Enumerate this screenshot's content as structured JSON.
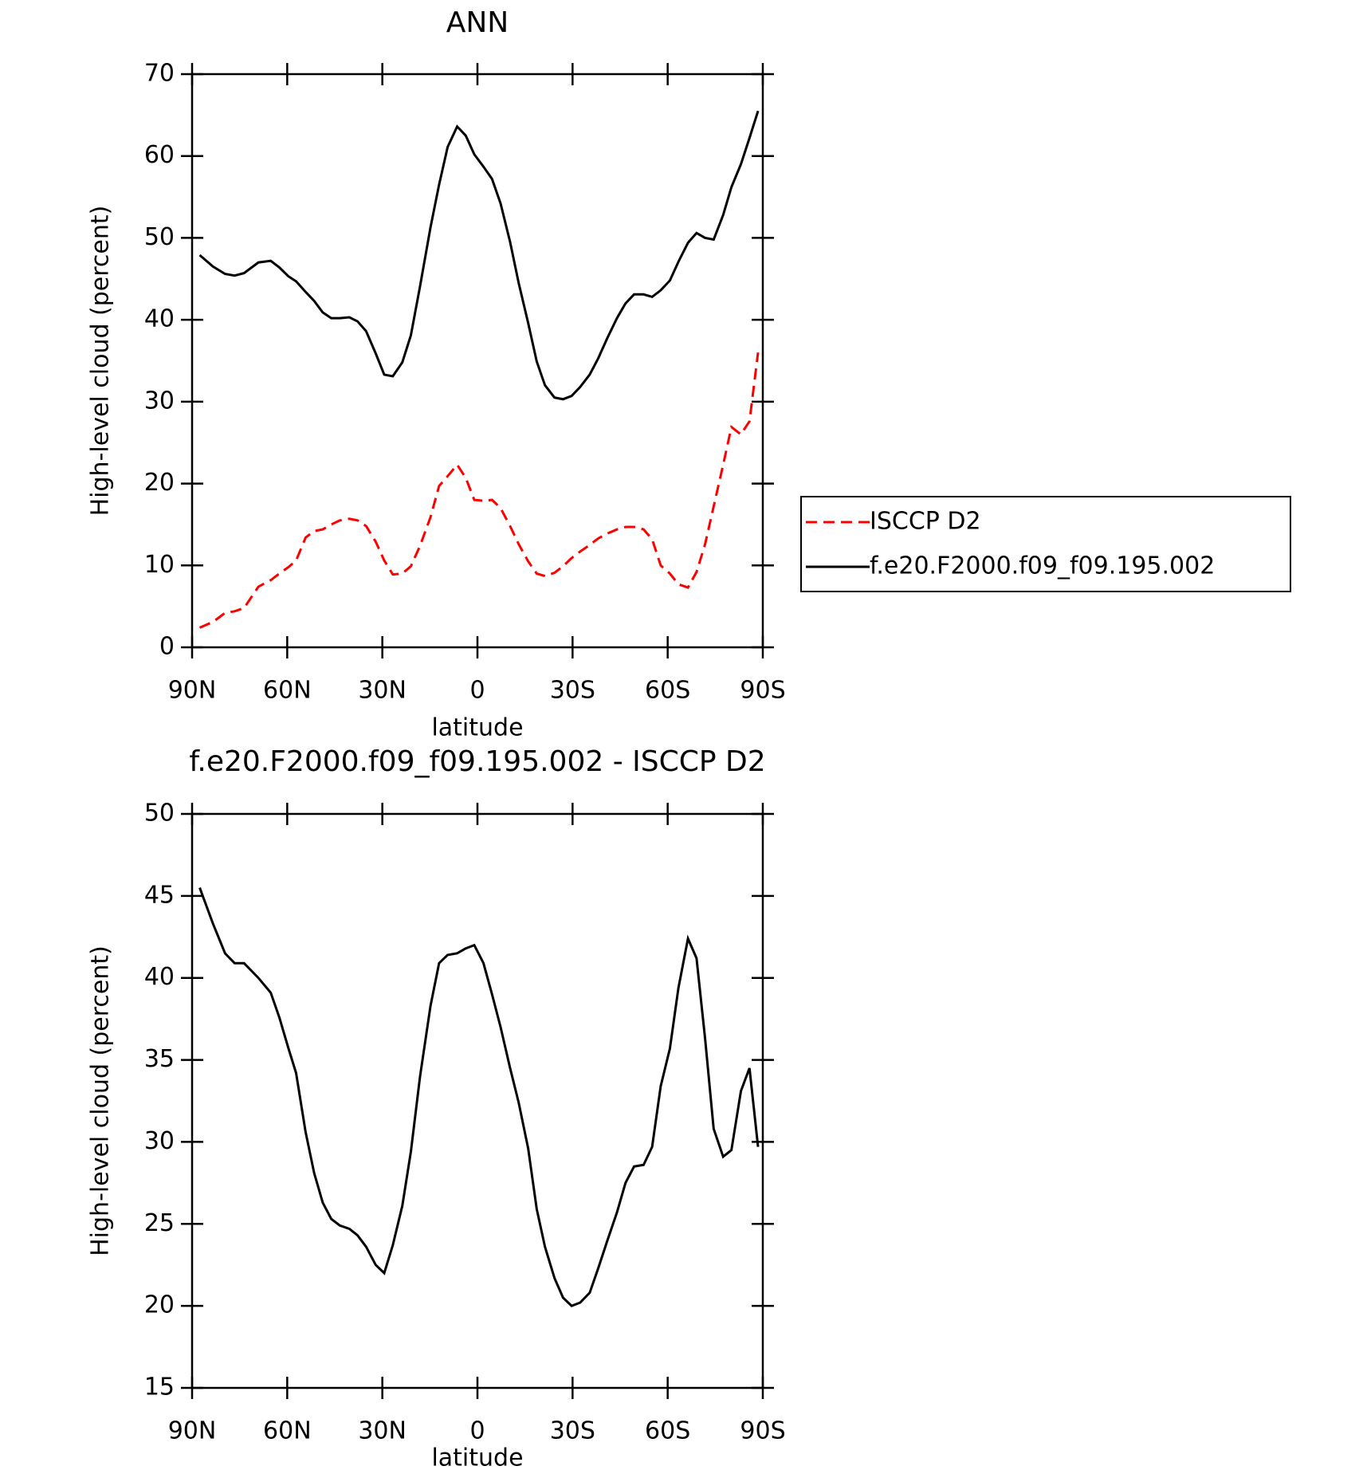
{
  "chart_data": [
    {
      "type": "line",
      "title": "ANN",
      "x_label": "latitude",
      "y_label": "High-level cloud (percent)",
      "x": [
        87.6,
        83.4,
        79.6,
        76.6,
        73.6,
        69.1,
        65.2,
        62.5,
        59.6,
        57.2,
        54.2,
        51.5,
        48.8,
        46.1,
        43.4,
        40.4,
        37.8,
        35.1,
        32.1,
        29.4,
        26.7,
        23.7,
        21.0,
        18.1,
        14.8,
        12.1,
        9.4,
        6.4,
        3.7,
        1.0,
        -1.9,
        -4.6,
        -7.3,
        -10.3,
        -13.0,
        -16.0,
        -18.7,
        -21.3,
        -24.3,
        -27.0,
        -29.7,
        -32.4,
        -35.4,
        -38.1,
        -41.0,
        -44.0,
        -46.7,
        -49.4,
        -52.4,
        -55.1,
        -57.8,
        -60.7,
        -63.4,
        -66.4,
        -69.1,
        -71.8,
        -74.5,
        -77.5,
        -80.1,
        -83.1,
        -85.8,
        -88.5
      ],
      "series": [
        {
          "name": "ISCCP D2",
          "color": "#ff0000",
          "line_style": "dashed",
          "values": [
            2.4,
            3.1,
            4.2,
            4.4,
            4.8,
            7.4,
            8.2,
            9.0,
            9.8,
            10.6,
            13.4,
            14.2,
            14.4,
            15.0,
            15.5,
            15.7,
            15.5,
            14.8,
            12.9,
            10.6,
            8.9,
            9.0,
            9.9,
            12.4,
            15.9,
            19.7,
            20.9,
            22.3,
            20.7,
            18.0,
            17.9,
            18.0,
            17.0,
            14.8,
            12.6,
            10.5,
            9.0,
            8.7,
            9.1,
            9.9,
            10.9,
            11.7,
            12.5,
            13.3,
            13.9,
            14.4,
            14.7,
            14.7,
            14.4,
            13.2,
            10.0,
            9.0,
            7.7,
            7.3,
            9.2,
            12.6,
            17.2,
            22.3,
            26.9,
            26.0,
            27.6,
            36.0
          ]
        },
        {
          "name": "f.e20.F2000.f09_f09.195.002",
          "color": "#000000",
          "line_style": "solid",
          "values": [
            47.9,
            46.5,
            45.6,
            45.4,
            45.7,
            47.0,
            47.2,
            46.4,
            45.3,
            44.7,
            43.4,
            42.3,
            40.9,
            40.2,
            40.2,
            40.3,
            39.8,
            38.6,
            35.9,
            33.3,
            33.1,
            34.8,
            38.1,
            44.1,
            51.3,
            56.5,
            61.1,
            63.6,
            62.5,
            60.2,
            58.7,
            57.2,
            54.2,
            49.5,
            44.5,
            39.6,
            34.9,
            32.0,
            30.5,
            30.3,
            30.7,
            31.8,
            33.3,
            35.3,
            37.8,
            40.2,
            42.0,
            43.1,
            43.1,
            42.8,
            43.6,
            44.8,
            47.1,
            49.4,
            50.6,
            50.0,
            49.8,
            52.8,
            56.2,
            59.0,
            62.2,
            65.5
          ]
        }
      ],
      "xlim": [
        90,
        -90
      ],
      "xticks": [
        {
          "value": 90,
          "label": "90N"
        },
        {
          "value": 60,
          "label": "60N"
        },
        {
          "value": 30,
          "label": "30N"
        },
        0,
        {
          "value": -30,
          "label": "30S"
        },
        {
          "value": -60,
          "label": "60S"
        },
        {
          "value": -90,
          "label": "90S"
        }
      ],
      "ylim": [
        0,
        70
      ],
      "yticks": [
        0,
        10,
        20,
        30,
        40,
        50,
        60,
        70
      ],
      "legend": "right"
    },
    {
      "type": "line",
      "title": "f.e20.F2000.f09_f09.195.002 - ISCCP D2",
      "x_label": "latitude",
      "y_label": "High-level cloud (percent)",
      "x": [
        87.6,
        83.4,
        79.6,
        76.6,
        73.6,
        69.1,
        65.2,
        62.5,
        59.6,
        57.2,
        54.2,
        51.5,
        48.8,
        46.1,
        43.4,
        40.4,
        37.8,
        35.1,
        32.1,
        29.4,
        26.7,
        23.7,
        21.0,
        18.1,
        14.8,
        12.1,
        9.4,
        6.4,
        3.7,
        1.0,
        -1.9,
        -4.6,
        -7.3,
        -10.3,
        -13.0,
        -16.0,
        -18.7,
        -21.3,
        -24.3,
        -27.0,
        -29.7,
        -32.4,
        -35.4,
        -38.1,
        -41.0,
        -44.0,
        -46.7,
        -49.4,
        -52.4,
        -55.1,
        -57.8,
        -60.7,
        -63.4,
        -66.4,
        -69.1,
        -71.8,
        -74.5,
        -77.5,
        -80.1,
        -83.1,
        -85.8,
        -88.5
      ],
      "series": [
        {
          "color": "#000000",
          "line_style": "solid",
          "values": [
            45.5,
            43.3,
            41.5,
            40.9,
            40.9,
            40.0,
            39.1,
            37.6,
            35.7,
            34.2,
            30.6,
            28.1,
            26.3,
            25.3,
            24.9,
            24.7,
            24.3,
            23.6,
            22.5,
            22.0,
            23.7,
            26.1,
            29.4,
            34.0,
            38.3,
            40.9,
            41.4,
            41.5,
            41.8,
            42.0,
            40.9,
            39.0,
            37.0,
            34.5,
            32.4,
            29.6,
            25.9,
            23.6,
            21.7,
            20.5,
            20.0,
            20.2,
            20.8,
            22.3,
            24.0,
            25.7,
            27.5,
            28.5,
            28.6,
            29.7,
            33.4,
            35.7,
            39.4,
            42.4,
            41.2,
            36.3,
            30.8,
            29.1,
            29.5,
            33.1,
            34.5,
            29.7
          ]
        }
      ],
      "xlim": [
        90,
        -90
      ],
      "xticks": [
        {
          "value": 90,
          "label": "90N"
        },
        {
          "value": 60,
          "label": "60N"
        },
        {
          "value": 30,
          "label": "30N"
        },
        0,
        {
          "value": -30,
          "label": "30S"
        },
        {
          "value": -60,
          "label": "60S"
        },
        {
          "value": -90,
          "label": "90S"
        }
      ],
      "ylim": [
        15,
        50
      ],
      "yticks": [
        15,
        20,
        25,
        30,
        35,
        40,
        45,
        50
      ]
    }
  ]
}
